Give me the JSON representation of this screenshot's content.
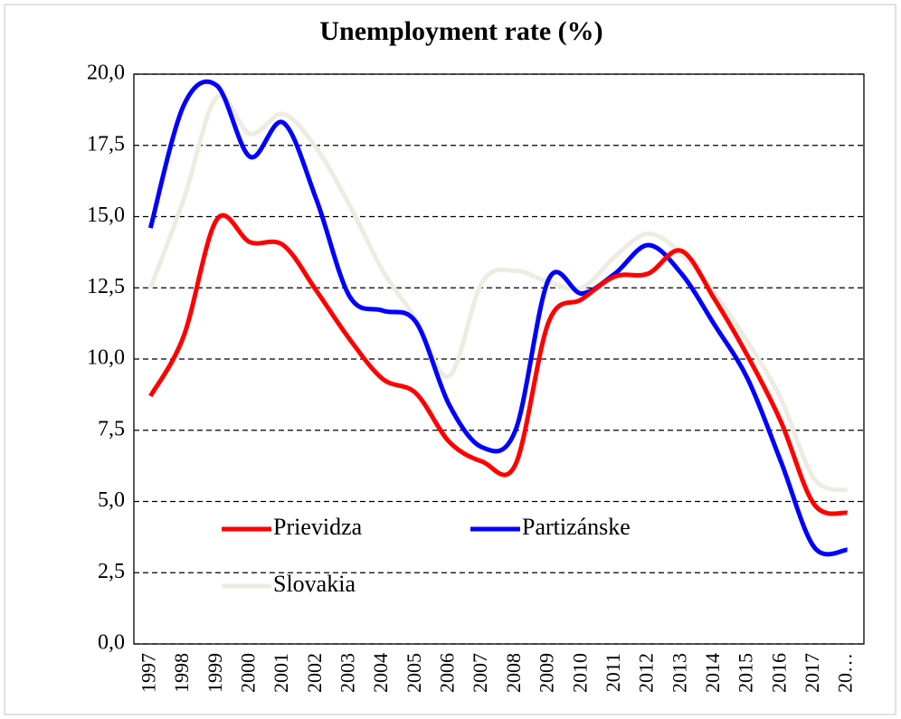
{
  "chart_data": {
    "type": "line",
    "title": "Unemployment rate (%)",
    "categories": [
      "1997",
      "1998",
      "1999",
      "2000",
      "2001",
      "2002",
      "2003",
      "2004",
      "2005",
      "2006",
      "2007",
      "2008",
      "2009",
      "2010",
      "2011",
      "2012",
      "2013",
      "2014",
      "2015",
      "2016",
      "2017",
      "20…"
    ],
    "series": [
      {
        "name": "Prievidza",
        "color": "#ff0000",
        "values": [
          8.7,
          10.8,
          14.9,
          14.1,
          14.0,
          12.4,
          10.7,
          9.3,
          8.8,
          7.1,
          6.4,
          6.3,
          11.3,
          12.1,
          12.9,
          13.0,
          13.8,
          12.1,
          10.1,
          7.8,
          4.9,
          4.6
        ]
      },
      {
        "name": "Partizánske",
        "color": "#0000ff",
        "values": [
          14.6,
          18.9,
          19.6,
          17.1,
          18.3,
          15.6,
          12.2,
          11.7,
          11.3,
          8.4,
          6.9,
          7.5,
          12.8,
          12.3,
          13.0,
          14.0,
          13.0,
          11.2,
          9.3,
          6.4,
          3.4,
          3.3
        ]
      },
      {
        "name": "Slovakia",
        "color": "#eeece1",
        "values": [
          12.5,
          15.6,
          19.2,
          17.9,
          18.6,
          17.4,
          15.4,
          13.1,
          11.4,
          9.4,
          12.7,
          13.1,
          12.7,
          12.5,
          13.6,
          14.4,
          13.7,
          12.3,
          10.6,
          8.6,
          5.8,
          5.4
        ]
      }
    ],
    "ylim": [
      0,
      20
    ],
    "yticks": [
      {
        "value": 0,
        "label": "0,0"
      },
      {
        "value": 2.5,
        "label": "2,5"
      },
      {
        "value": 5,
        "label": "5,0"
      },
      {
        "value": 7.5,
        "label": "7,5"
      },
      {
        "value": 10,
        "label": "10,0"
      },
      {
        "value": 12.5,
        "label": "12,5"
      },
      {
        "value": 15,
        "label": "15,0"
      },
      {
        "value": 17.5,
        "label": "17,5"
      },
      {
        "value": 20,
        "label": "20,0"
      }
    ],
    "grid": true
  }
}
